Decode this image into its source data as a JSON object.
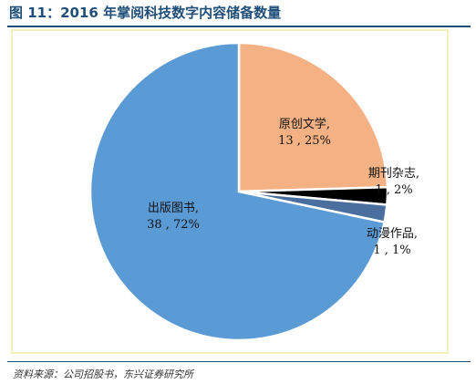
{
  "title": "图 11：2016 年掌阅科技数字内容储备数量",
  "source": "资料来源：公司招股书，东兴证券研究所",
  "chart_data": {
    "type": "pie",
    "title": "",
    "start_angle_deg": 0,
    "direction": "clockwise",
    "slices": [
      {
        "name": "原创文学",
        "value": 13,
        "percent": "25%",
        "color": "#f4b183",
        "label_line1": "原创文学,",
        "label_line2": "13 , 25%"
      },
      {
        "name": "期刊杂志",
        "value": 1,
        "percent": "2%",
        "color": "#000000",
        "label_line1": "期刊杂志,",
        "label_line2": "1 , 2%"
      },
      {
        "name": "动漫作品",
        "value": 1,
        "percent": "1%",
        "color": "#4a6f9e",
        "label_line1": "动漫作品,",
        "label_line2": "1 , 1%"
      },
      {
        "name": "出版图书",
        "value": 38,
        "percent": "72%",
        "color": "#5b9bd5",
        "label_line1": "出版图书,",
        "label_line2": "38 , 72%"
      }
    ],
    "legend": "none"
  }
}
